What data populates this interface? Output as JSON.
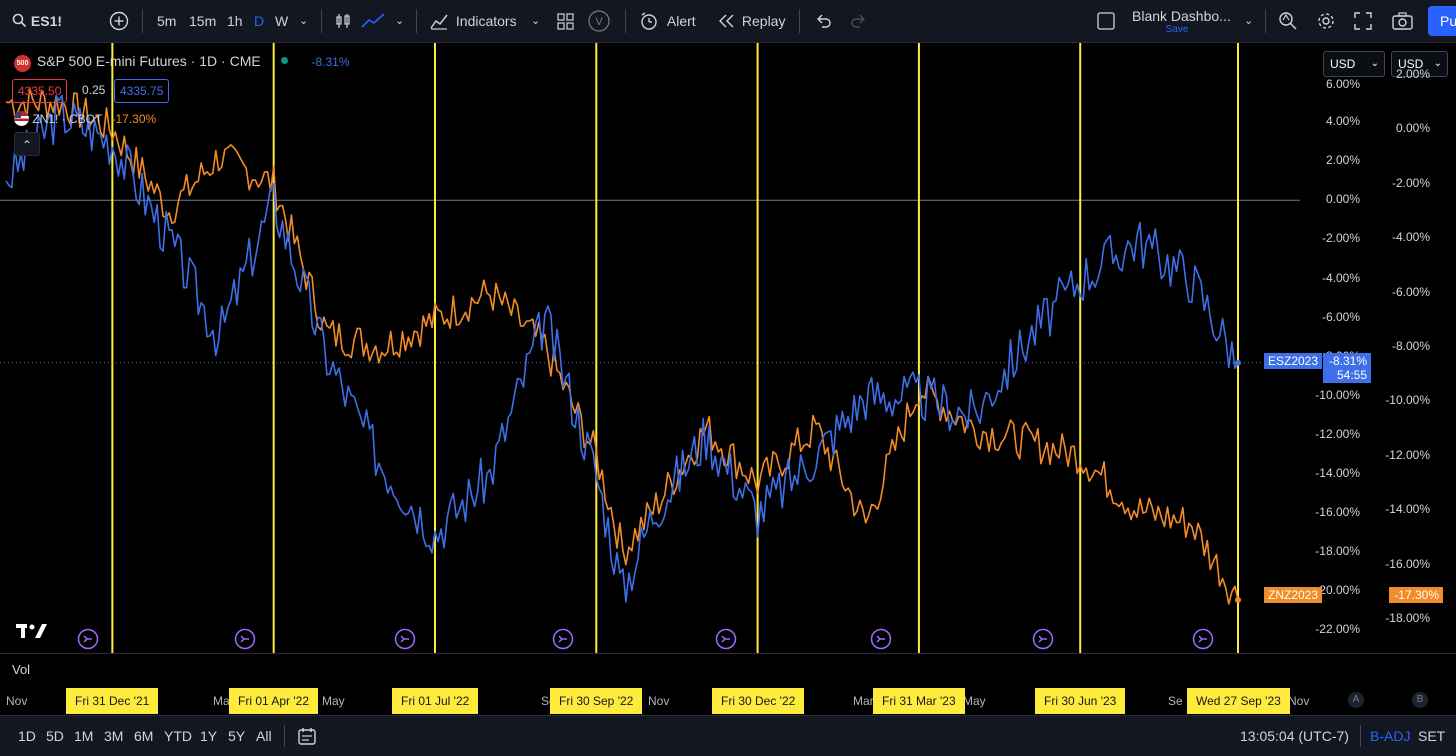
{
  "toolbar": {
    "symbol": "ES1!",
    "intervals": [
      "5m",
      "15m",
      "1h",
      "D",
      "W"
    ],
    "active_interval": "D",
    "indicators_label": "Indicators",
    "alert_label": "Alert",
    "replay_label": "Replay",
    "layout_name": "Blank Dashbo...",
    "layout_save": "Save",
    "publish_label": "Pu"
  },
  "legend": {
    "main_title": "S&P 500 E-mini Futures · 1D · CME",
    "main_badge": "500",
    "main_change": "-8.31%",
    "bid": "4335.50",
    "spread": "0.25",
    "ask": "4335.75",
    "compare_symbol": "ZN1! · CBOT",
    "compare_change": "-17.30%"
  },
  "currency": {
    "left": "USD",
    "right": "USD"
  },
  "left_axis_labels": [
    "6.00%",
    "4.00%",
    "2.00%",
    "0.00%",
    "-2.00%",
    "-4.00%",
    "-6.00%",
    "-8.00%",
    "-10.00%",
    "-12.00%",
    "-14.00%",
    "-16.00%",
    "-18.00%",
    "-20.00%",
    "-22.00%"
  ],
  "right_axis_labels": [
    "2.00%",
    "0.00%",
    "-2.00%",
    "-4.00%",
    "-6.00%",
    "-8.00%",
    "-10.00%",
    "-12.00%",
    "-14.00%",
    "-16.00%",
    "-18.00%"
  ],
  "price_tags": {
    "es_name": "ESZ2023",
    "es_value": "-8.31%",
    "es_countdown": "54:55",
    "zn_name": "ZNZ2023",
    "zn_value": "-17.30%"
  },
  "volume_label": "Vol",
  "time_axis": {
    "plain": [
      "Nov",
      "Mar",
      "May",
      "Sep",
      "Nov",
      "Mar",
      "May",
      "Se",
      "Nov"
    ],
    "highlighted": [
      "Fri 31 Dec '21",
      "Fri 01 Apr '22",
      "Fri 01 Jul '22",
      "Fri 30 Sep '22",
      "Fri 30 Dec '22",
      "Fri 31 Mar '23",
      "Fri 30 Jun '23",
      "Wed 27 Sep '23"
    ],
    "scale_buttons": [
      "A",
      "B"
    ]
  },
  "bottombar": {
    "ranges": [
      "1D",
      "5D",
      "1M",
      "3M",
      "6M",
      "YTD",
      "1Y",
      "5Y",
      "All"
    ],
    "clock": "13:05:04 (UTC-7)",
    "badj": "B-ADJ",
    "session": "SET"
  },
  "colors": {
    "es_line": "#3d6fe8",
    "zn_line": "#f28c28",
    "quarter_line": "#ffeb3b",
    "background": "#000000"
  },
  "chart_data": {
    "type": "line",
    "x_dates": [
      "2021-11-01",
      "2021-12-01",
      "2021-12-31",
      "2022-02-01",
      "2022-03-01",
      "2022-04-01",
      "2022-05-01",
      "2022-06-01",
      "2022-07-01",
      "2022-08-01",
      "2022-09-01",
      "2022-09-30",
      "2022-10-15",
      "2022-11-01",
      "2022-12-01",
      "2022-12-30",
      "2023-02-01",
      "2023-03-01",
      "2023-03-31",
      "2023-05-01",
      "2023-06-01",
      "2023-06-30",
      "2023-08-01",
      "2023-09-01",
      "2023-09-27"
    ],
    "series": [
      {
        "name": "ESZ2023",
        "axis": "left",
        "values": [
          1.0,
          4.5,
          3.0,
          -2.0,
          -7.0,
          0.0,
          -8.0,
          -13.5,
          -17.0,
          -14.0,
          -6.0,
          -14.0,
          -20.0,
          -16.0,
          -12.0,
          -16.0,
          -13.0,
          -10.0,
          -10.0,
          -11.0,
          -7.0,
          -4.0,
          -2.0,
          -4.0,
          -8.31
        ]
      },
      {
        "name": "ZNZ2023",
        "axis": "right",
        "values": [
          1.0,
          1.0,
          0.0,
          -3.0,
          -1.0,
          -2.0,
          -7.5,
          -8.0,
          -7.0,
          -6.0,
          -8.0,
          -12.0,
          -15.5,
          -14.0,
          -11.0,
          -13.0,
          -11.0,
          -14.5,
          -9.5,
          -11.0,
          -11.5,
          -12.0,
          -14.0,
          -14.5,
          -17.3
        ]
      }
    ],
    "left_ylim": [
      -22.0,
      6.0
    ],
    "right_ylim": [
      -18.0,
      2.0
    ],
    "vertical_markers": [
      "Fri 31 Dec '21",
      "Fri 01 Apr '22",
      "Fri 01 Jul '22",
      "Fri 30 Sep '22",
      "Fri 30 Dec '22",
      "Fri 31 Mar '23",
      "Fri 30 Jun '23",
      "Wed 27 Sep '23"
    ],
    "grid": false
  }
}
